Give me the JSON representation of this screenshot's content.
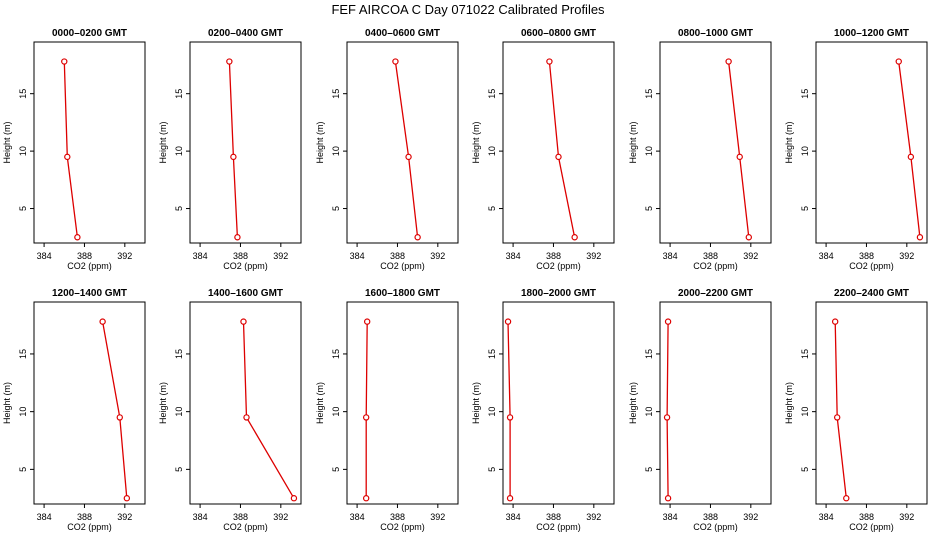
{
  "title": "FEF AIRCOA C  Day 071022  Calibrated Profiles",
  "style": {
    "series_color": "#dd0000",
    "axis_color": "#000000"
  },
  "chart_data": [
    {
      "type": "line",
      "title": "0000–0200 GMT",
      "xlabel": "CO2 (ppm)",
      "ylabel": "Height (m)",
      "xlim": [
        383,
        394
      ],
      "ylim": [
        2,
        19.5
      ],
      "xticks": [
        384,
        388,
        392
      ],
      "yticks": [
        5,
        10,
        15
      ],
      "series": [
        {
          "x": [
            387.3,
            386.3,
            386.0
          ],
          "y": [
            2.5,
            9.5,
            17.8
          ]
        }
      ]
    },
    {
      "type": "line",
      "title": "0200–0400 GMT",
      "xlabel": "CO2 (ppm)",
      "ylabel": "Height (m)",
      "xlim": [
        383,
        394
      ],
      "ylim": [
        2,
        19.5
      ],
      "xticks": [
        384,
        388,
        392
      ],
      "yticks": [
        5,
        10,
        15
      ],
      "series": [
        {
          "x": [
            387.7,
            387.3,
            386.9
          ],
          "y": [
            2.5,
            9.5,
            17.8
          ]
        }
      ]
    },
    {
      "type": "line",
      "title": "0400–0600 GMT",
      "xlabel": "CO2 (ppm)",
      "ylabel": "Height (m)",
      "xlim": [
        383,
        394
      ],
      "ylim": [
        2,
        19.5
      ],
      "xticks": [
        384,
        388,
        392
      ],
      "yticks": [
        5,
        10,
        15
      ],
      "series": [
        {
          "x": [
            390.0,
            389.1,
            387.8
          ],
          "y": [
            2.5,
            9.5,
            17.8
          ]
        }
      ]
    },
    {
      "type": "line",
      "title": "0600–0800 GMT",
      "xlabel": "CO2 (ppm)",
      "ylabel": "Height (m)",
      "xlim": [
        383,
        394
      ],
      "ylim": [
        2,
        19.5
      ],
      "xticks": [
        384,
        388,
        392
      ],
      "yticks": [
        5,
        10,
        15
      ],
      "series": [
        {
          "x": [
            390.1,
            388.5,
            387.6
          ],
          "y": [
            2.5,
            9.5,
            17.8
          ]
        }
      ]
    },
    {
      "type": "line",
      "title": "0800–1000 GMT",
      "xlabel": "CO2 (ppm)",
      "ylabel": "Height (m)",
      "xlim": [
        383,
        394
      ],
      "ylim": [
        2,
        19.5
      ],
      "xticks": [
        384,
        388,
        392
      ],
      "yticks": [
        5,
        10,
        15
      ],
      "series": [
        {
          "x": [
            391.8,
            390.9,
            389.8
          ],
          "y": [
            2.5,
            9.5,
            17.8
          ]
        }
      ]
    },
    {
      "type": "line",
      "title": "1000–1200 GMT",
      "xlabel": "CO2 (ppm)",
      "ylabel": "Height (m)",
      "xlim": [
        383,
        394
      ],
      "ylim": [
        2,
        19.5
      ],
      "xticks": [
        384,
        388,
        392
      ],
      "yticks": [
        5,
        10,
        15
      ],
      "series": [
        {
          "x": [
            393.3,
            392.4,
            391.2
          ],
          "y": [
            2.5,
            9.5,
            17.8
          ]
        }
      ]
    },
    {
      "type": "line",
      "title": "1200–1400 GMT",
      "xlabel": "CO2 (ppm)",
      "ylabel": "Height (m)",
      "xlim": [
        383,
        394
      ],
      "ylim": [
        2,
        19.5
      ],
      "xticks": [
        384,
        388,
        392
      ],
      "yticks": [
        5,
        10,
        15
      ],
      "series": [
        {
          "x": [
            392.2,
            391.5,
            389.8
          ],
          "y": [
            2.5,
            9.5,
            17.8
          ]
        }
      ]
    },
    {
      "type": "line",
      "title": "1400–1600 GMT",
      "xlabel": "CO2 (ppm)",
      "ylabel": "Height (m)",
      "xlim": [
        383,
        394
      ],
      "ylim": [
        2,
        19.5
      ],
      "xticks": [
        384,
        388,
        392
      ],
      "yticks": [
        5,
        10,
        15
      ],
      "series": [
        {
          "x": [
            393.3,
            388.6,
            388.3
          ],
          "y": [
            2.5,
            9.5,
            17.8
          ]
        }
      ]
    },
    {
      "type": "line",
      "title": "1600–1800 GMT",
      "xlabel": "CO2 (ppm)",
      "ylabel": "Height (m)",
      "xlim": [
        383,
        394
      ],
      "ylim": [
        2,
        19.5
      ],
      "xticks": [
        384,
        388,
        392
      ],
      "yticks": [
        5,
        10,
        15
      ],
      "series": [
        {
          "x": [
            384.9,
            384.9,
            385.0
          ],
          "y": [
            2.5,
            9.5,
            17.8
          ]
        }
      ]
    },
    {
      "type": "line",
      "title": "1800–2000 GMT",
      "xlabel": "CO2 (ppm)",
      "ylabel": "Height (m)",
      "xlim": [
        383,
        394
      ],
      "ylim": [
        2,
        19.5
      ],
      "xticks": [
        384,
        388,
        392
      ],
      "yticks": [
        5,
        10,
        15
      ],
      "series": [
        {
          "x": [
            383.7,
            383.7,
            383.5
          ],
          "y": [
            2.5,
            9.5,
            17.8
          ]
        }
      ]
    },
    {
      "type": "line",
      "title": "2000–2200 GMT",
      "xlabel": "CO2 (ppm)",
      "ylabel": "Height (m)",
      "xlim": [
        383,
        394
      ],
      "ylim": [
        2,
        19.5
      ],
      "xticks": [
        384,
        388,
        392
      ],
      "yticks": [
        5,
        10,
        15
      ],
      "series": [
        {
          "x": [
            383.8,
            383.7,
            383.8
          ],
          "y": [
            2.5,
            9.5,
            17.8
          ]
        }
      ]
    },
    {
      "type": "line",
      "title": "2200–2400 GMT",
      "xlabel": "CO2 (ppm)",
      "ylabel": "Height (m)",
      "xlim": [
        383,
        394
      ],
      "ylim": [
        2,
        19.5
      ],
      "xticks": [
        384,
        388,
        392
      ],
      "yticks": [
        5,
        10,
        15
      ],
      "series": [
        {
          "x": [
            386.0,
            385.1,
            384.9
          ],
          "y": [
            2.5,
            9.5,
            17.8
          ]
        }
      ]
    }
  ]
}
